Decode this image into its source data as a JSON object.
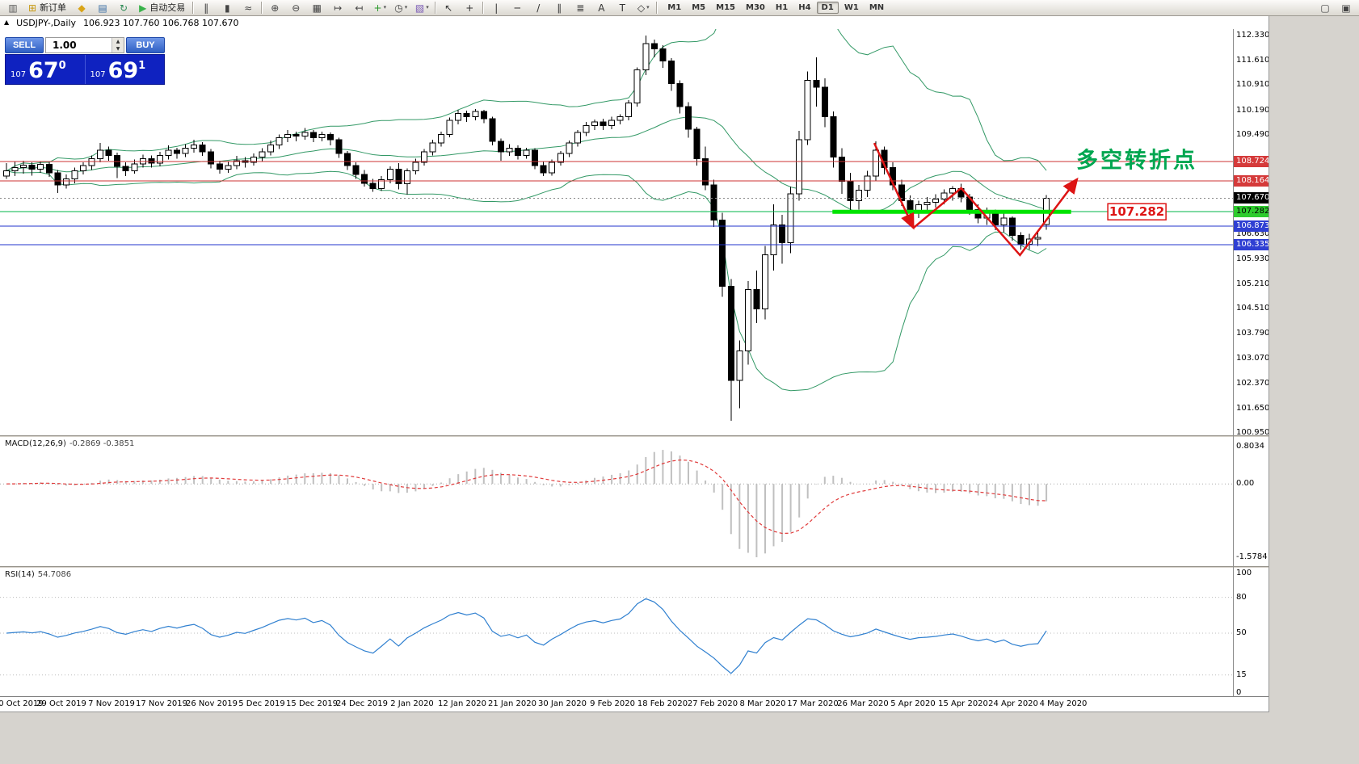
{
  "toolbar": {
    "items": [
      {
        "type": "icon",
        "name": "chart-window-icon",
        "glyph": "▥",
        "color": "#5a5a5a"
      },
      {
        "type": "labeled",
        "name": "new-order-button",
        "glyph": "⊞",
        "color": "#c79a14",
        "label": "新订单"
      },
      {
        "type": "icon",
        "name": "metaeditor-icon",
        "glyph": "◆",
        "color": "#d9a417"
      },
      {
        "type": "icon",
        "name": "market-watch-icon",
        "glyph": "▤",
        "color": "#3a6ea5"
      },
      {
        "type": "icon",
        "name": "refresh-icon",
        "glyph": "↻",
        "color": "#2e8b57"
      },
      {
        "type": "labeled",
        "name": "autotrading-button",
        "glyph": "▶",
        "color": "#38b24a",
        "label": "自动交易"
      },
      {
        "type": "sep"
      },
      {
        "type": "icon",
        "name": "bar-chart-mode-icon",
        "glyph": "‖",
        "color": "#444444"
      },
      {
        "type": "icon",
        "name": "candlestick-mode-icon",
        "glyph": "▮",
        "color": "#444444"
      },
      {
        "type": "icon",
        "name": "line-chart-mode-icon",
        "glyph": "≈",
        "color": "#444444"
      },
      {
        "type": "sep"
      },
      {
        "type": "icon",
        "name": "zoom-in-icon",
        "glyph": "⊕",
        "color": "#444444"
      },
      {
        "type": "icon",
        "name": "zoom-out-icon",
        "glyph": "⊖",
        "color": "#444444"
      },
      {
        "type": "icon",
        "name": "tile-windows-icon",
        "glyph": "▦",
        "color": "#444444"
      },
      {
        "type": "icon",
        "name": "auto-scroll-icon",
        "glyph": "↦",
        "color": "#444444"
      },
      {
        "type": "icon",
        "name": "chart-shift-icon",
        "glyph": "↤",
        "color": "#444444"
      },
      {
        "type": "dropdown",
        "name": "indicators-button",
        "glyph": "+",
        "color": "#2a9a2a"
      },
      {
        "type": "dropdown",
        "name": "periods-button",
        "glyph": "◷",
        "color": "#444444"
      },
      {
        "type": "dropdown",
        "name": "templates-button",
        "glyph": "▧",
        "color": "#7a5ab5"
      },
      {
        "type": "sep"
      },
      {
        "type": "icon",
        "name": "cursor-icon",
        "glyph": "↖",
        "color": "#333333"
      },
      {
        "type": "icon",
        "name": "crosshair-icon",
        "glyph": "+",
        "color": "#333333"
      },
      {
        "type": "sep"
      },
      {
        "type": "icon",
        "name": "vertical-line-icon",
        "glyph": "|",
        "color": "#333333"
      },
      {
        "type": "icon",
        "name": "horizontal-line-icon",
        "glyph": "─",
        "color": "#333333"
      },
      {
        "type": "icon",
        "name": "trendline-icon",
        "glyph": "/",
        "color": "#333333"
      },
      {
        "type": "icon",
        "name": "channel-icon",
        "glyph": "∥",
        "color": "#333333"
      },
      {
        "type": "icon",
        "name": "fibonacci-icon",
        "glyph": "≣",
        "color": "#333333"
      },
      {
        "type": "icon",
        "name": "text-icon",
        "glyph": "A",
        "color": "#333333"
      },
      {
        "type": "icon",
        "name": "label-icon",
        "glyph": "T",
        "color": "#333333"
      },
      {
        "type": "dropdown",
        "name": "shapes-button",
        "glyph": "◇",
        "color": "#333333"
      },
      {
        "type": "sep"
      },
      {
        "type": "timeframes"
      },
      {
        "type": "spacer"
      },
      {
        "type": "icon",
        "name": "new-window-icon",
        "glyph": "▢",
        "color": "#444444"
      },
      {
        "type": "icon",
        "name": "window-list-icon",
        "glyph": "▣",
        "color": "#444444"
      }
    ],
    "timeframes": {
      "labels": [
        "M1",
        "M5",
        "M15",
        "M30",
        "H1",
        "H4",
        "D1",
        "W1",
        "MN"
      ],
      "active": "D1"
    }
  },
  "chart_header": {
    "toggle_glyph": "▲",
    "symbol": "USDJPY-,Daily",
    "ohlc": "106.923 107.760 106.768 107.670"
  },
  "order_panel": {
    "sell_label": "SELL",
    "buy_label": "BUY",
    "volume_value": "1.00",
    "spin_up_glyph": "▲",
    "spin_down_glyph": "▼",
    "sell_price": {
      "small": "107",
      "big": "67",
      "sup": "0"
    },
    "buy_price": {
      "small": "107",
      "big": "69",
      "sup": "1"
    }
  },
  "price_axis": {
    "plain": [
      "112.330",
      "111.610",
      "110.910",
      "110.190",
      "109.490",
      "106.630",
      "105.930",
      "105.210",
      "104.510",
      "103.790",
      "103.070",
      "102.370",
      "101.650",
      "100.950"
    ],
    "badges": [
      {
        "text": "108.724",
        "value": 108.724,
        "style": "red"
      },
      {
        "text": "108.164",
        "value": 108.164,
        "style": "red"
      },
      {
        "text": "107.670",
        "value": 107.67,
        "style": "black"
      },
      {
        "text": "107.282",
        "value": 107.282,
        "style": "green"
      },
      {
        "text": "106.873",
        "value": 106.873,
        "style": "blue"
      },
      {
        "text": "106.335",
        "value": 106.335,
        "style": "blue"
      }
    ]
  },
  "time_axis": [
    "0 Oct 2019",
    "29 Oct 2019",
    "7 Nov 2019",
    "17 Nov 2019",
    "26 Nov 2019",
    "5 Dec 2019",
    "15 Dec 2019",
    "24 Dec 2019",
    "2 Jan 2020",
    "12 Jan 2020",
    "21 Jan 2020",
    "30 Jan 2020",
    "9 Feb 2020",
    "18 Feb 2020",
    "27 Feb 2020",
    "8 Mar 2020",
    "17 Mar 2020",
    "26 Mar 2020",
    "5 Apr 2020",
    "15 Apr 2020",
    "24 Apr 2020",
    "4 May 2020"
  ],
  "annotations": {
    "turning_point": "多空转折点",
    "price_label": "107.282"
  },
  "colors": {
    "level_red": "#cc3333",
    "level_green": "#00b44a",
    "level_blue": "#2233cc",
    "highlight_green": "#00e400",
    "bands_green": "#339966",
    "rsi_blue": "#3080d0",
    "macd_signal": "#e03a3a",
    "macd_hist": "#c0c0c0",
    "annotation_green": "#00a650",
    "annotation_red": "#dd1414"
  },
  "chart_data": {
    "type": "candlestick",
    "symbol": "USDJPY",
    "timeframe": "Daily",
    "title_ohlc": {
      "open": "106.923",
      "high": "107.760",
      "low": "106.768",
      "close": "107.670"
    },
    "y_axis": {
      "min": 100.95,
      "max": 112.33
    },
    "bollinger": {
      "period": 20,
      "deviation": 2
    },
    "candles": [
      [
        108.3,
        108.68,
        108.22,
        108.45
      ],
      [
        108.45,
        108.72,
        108.3,
        108.55
      ],
      [
        108.55,
        108.75,
        108.38,
        108.62
      ],
      [
        108.62,
        108.7,
        108.32,
        108.5
      ],
      [
        108.5,
        108.72,
        108.4,
        108.64
      ],
      [
        108.64,
        108.7,
        108.28,
        108.4
      ],
      [
        108.4,
        108.48,
        107.82,
        108.05
      ],
      [
        108.05,
        108.35,
        107.95,
        108.22
      ],
      [
        108.22,
        108.55,
        108.1,
        108.45
      ],
      [
        108.45,
        108.7,
        108.35,
        108.6
      ],
      [
        108.6,
        108.9,
        108.48,
        108.8
      ],
      [
        108.8,
        109.25,
        108.7,
        109.05
      ],
      [
        109.05,
        109.15,
        108.75,
        108.9
      ],
      [
        108.9,
        108.98,
        108.25,
        108.58
      ],
      [
        108.58,
        108.7,
        108.3,
        108.45
      ],
      [
        108.45,
        108.78,
        108.38,
        108.65
      ],
      [
        108.65,
        108.92,
        108.55,
        108.8
      ],
      [
        108.8,
        108.9,
        108.55,
        108.68
      ],
      [
        108.68,
        109.0,
        108.58,
        108.9
      ],
      [
        108.9,
        109.18,
        108.78,
        109.05
      ],
      [
        109.05,
        109.12,
        108.8,
        108.95
      ],
      [
        108.95,
        109.22,
        108.85,
        109.1
      ],
      [
        109.1,
        109.35,
        108.98,
        109.2
      ],
      [
        109.2,
        109.28,
        108.88,
        109.0
      ],
      [
        109.0,
        109.08,
        108.52,
        108.65
      ],
      [
        108.65,
        108.75,
        108.38,
        108.5
      ],
      [
        108.5,
        108.72,
        108.4,
        108.6
      ],
      [
        108.6,
        108.88,
        108.5,
        108.75
      ],
      [
        108.75,
        108.85,
        108.55,
        108.7
      ],
      [
        108.7,
        108.95,
        108.6,
        108.85
      ],
      [
        108.85,
        109.1,
        108.72,
        109.0
      ],
      [
        109.0,
        109.32,
        108.9,
        109.2
      ],
      [
        109.2,
        109.5,
        109.08,
        109.4
      ],
      [
        109.4,
        109.62,
        109.28,
        109.5
      ],
      [
        109.5,
        109.58,
        109.3,
        109.45
      ],
      [
        109.45,
        109.68,
        109.35,
        109.55
      ],
      [
        109.55,
        109.62,
        109.28,
        109.4
      ],
      [
        109.4,
        109.58,
        109.3,
        109.5
      ],
      [
        109.5,
        109.55,
        109.18,
        109.35
      ],
      [
        109.35,
        109.4,
        108.82,
        108.95
      ],
      [
        108.95,
        109.02,
        108.48,
        108.6
      ],
      [
        108.6,
        108.7,
        108.22,
        108.35
      ],
      [
        108.35,
        108.48,
        108.0,
        108.1
      ],
      [
        108.1,
        108.22,
        107.85,
        107.95
      ],
      [
        107.95,
        108.3,
        107.88,
        108.2
      ],
      [
        108.2,
        108.58,
        108.1,
        108.5
      ],
      [
        108.5,
        108.68,
        107.92,
        108.08
      ],
      [
        108.08,
        108.52,
        107.77,
        108.45
      ],
      [
        108.45,
        108.8,
        108.35,
        108.7
      ],
      [
        108.7,
        109.08,
        108.6,
        109.0
      ],
      [
        109.0,
        109.35,
        108.9,
        109.25
      ],
      [
        109.25,
        109.58,
        109.15,
        109.5
      ],
      [
        109.5,
        109.98,
        109.42,
        109.9
      ],
      [
        109.9,
        110.2,
        109.78,
        110.1
      ],
      [
        110.1,
        110.18,
        109.85,
        110.0
      ],
      [
        110.0,
        110.22,
        109.9,
        110.15
      ],
      [
        110.15,
        110.2,
        109.82,
        109.95
      ],
      [
        109.95,
        110.0,
        109.18,
        109.3
      ],
      [
        109.3,
        109.38,
        108.75,
        109.0
      ],
      [
        109.0,
        109.22,
        108.88,
        109.1
      ],
      [
        109.1,
        109.18,
        108.78,
        108.9
      ],
      [
        108.9,
        109.12,
        108.8,
        109.05
      ],
      [
        109.05,
        109.1,
        108.5,
        108.6
      ],
      [
        108.6,
        108.72,
        108.3,
        108.4
      ],
      [
        108.4,
        108.78,
        108.32,
        108.7
      ],
      [
        108.7,
        109.02,
        108.6,
        108.95
      ],
      [
        108.95,
        109.32,
        108.85,
        109.25
      ],
      [
        109.25,
        109.62,
        109.15,
        109.55
      ],
      [
        109.55,
        109.85,
        109.45,
        109.75
      ],
      [
        109.75,
        109.92,
        109.62,
        109.85
      ],
      [
        109.85,
        109.95,
        109.62,
        109.75
      ],
      [
        109.75,
        110.0,
        109.65,
        109.9
      ],
      [
        109.9,
        110.08,
        109.78,
        110.0
      ],
      [
        110.0,
        110.48,
        109.9,
        110.4
      ],
      [
        110.4,
        111.42,
        110.3,
        111.35
      ],
      [
        111.35,
        112.33,
        111.2,
        112.1
      ],
      [
        112.1,
        112.22,
        111.7,
        111.95
      ],
      [
        111.95,
        112.05,
        111.4,
        111.6
      ],
      [
        111.6,
        111.68,
        110.75,
        110.95
      ],
      [
        110.95,
        111.05,
        110.1,
        110.3
      ],
      [
        110.3,
        110.42,
        109.4,
        109.65
      ],
      [
        109.65,
        109.72,
        108.6,
        108.8
      ],
      [
        108.8,
        109.15,
        107.9,
        108.05
      ],
      [
        108.05,
        108.2,
        106.85,
        107.05
      ],
      [
        107.05,
        107.25,
        104.85,
        105.15
      ],
      [
        105.15,
        105.35,
        101.3,
        102.45
      ],
      [
        102.45,
        103.6,
        101.65,
        103.3
      ],
      [
        103.3,
        105.3,
        102.9,
        105.05
      ],
      [
        105.05,
        105.6,
        104.1,
        104.5
      ],
      [
        104.5,
        106.3,
        104.2,
        106.05
      ],
      [
        106.05,
        107.5,
        105.6,
        106.9
      ],
      [
        106.9,
        107.2,
        105.8,
        106.4
      ],
      [
        106.4,
        108.0,
        106.1,
        107.8
      ],
      [
        107.8,
        109.6,
        107.6,
        109.35
      ],
      [
        109.35,
        111.3,
        109.2,
        111.05
      ],
      [
        111.05,
        111.7,
        110.3,
        110.85
      ],
      [
        110.85,
        111.1,
        109.7,
        110.0
      ],
      [
        110.0,
        110.15,
        108.55,
        108.85
      ],
      [
        108.85,
        109.1,
        107.8,
        108.15
      ],
      [
        108.15,
        108.4,
        107.3,
        107.6
      ],
      [
        107.6,
        108.05,
        107.35,
        107.9
      ],
      [
        107.9,
        108.45,
        107.7,
        108.3
      ],
      [
        108.3,
        109.3,
        108.15,
        109.05
      ],
      [
        109.05,
        109.15,
        108.35,
        108.55
      ],
      [
        108.55,
        108.7,
        107.9,
        108.05
      ],
      [
        108.05,
        108.2,
        107.45,
        107.6
      ],
      [
        107.6,
        107.75,
        107.0,
        107.25
      ],
      [
        107.25,
        107.6,
        107.1,
        107.48
      ],
      [
        107.48,
        107.7,
        107.3,
        107.55
      ],
      [
        107.55,
        107.78,
        107.4,
        107.65
      ],
      [
        107.65,
        107.92,
        107.5,
        107.82
      ],
      [
        107.82,
        108.02,
        107.6,
        107.95
      ],
      [
        107.95,
        108.08,
        107.55,
        107.7
      ],
      [
        107.7,
        107.8,
        107.2,
        107.35
      ],
      [
        107.35,
        107.5,
        106.95,
        107.1
      ],
      [
        107.1,
        107.4,
        106.9,
        107.28
      ],
      [
        107.28,
        107.35,
        106.75,
        106.9
      ],
      [
        106.9,
        107.25,
        106.7,
        107.1
      ],
      [
        107.1,
        107.15,
        106.45,
        106.6
      ],
      [
        106.6,
        106.7,
        106.2,
        106.35
      ],
      [
        106.35,
        106.65,
        106.2,
        106.5
      ],
      [
        106.5,
        106.75,
        106.3,
        106.55
      ],
      [
        106.92,
        107.76,
        106.77,
        107.67
      ]
    ],
    "levels": [
      {
        "value": 108.724,
        "color": "red",
        "style": "solid"
      },
      {
        "value": 108.164,
        "color": "red",
        "style": "solid"
      },
      {
        "value": 107.282,
        "color": "green",
        "style": "solid"
      },
      {
        "value": 106.873,
        "color": "blue",
        "style": "solid"
      },
      {
        "value": 106.335,
        "color": "blue",
        "style": "solid"
      },
      {
        "value": 107.67,
        "color": "gray",
        "style": "dotted",
        "role": "current-price"
      }
    ],
    "highlight_segment": {
      "value": 107.282,
      "i1": 96.9,
      "i2": 124.9
    },
    "zigzag_points": [
      [
        101.8,
        109.25
      ],
      [
        106.4,
        106.82
      ],
      [
        112.0,
        107.96
      ],
      [
        118.9,
        106.04
      ],
      [
        125.6,
        108.22
      ]
    ],
    "text_annotation": {
      "i": 125.5,
      "p": 108.55
    },
    "price_label_box": {
      "i": 129.2,
      "p": 107.282
    },
    "indicators": [
      {
        "type": "macd",
        "label": "MACD(12,26,9)",
        "values_label": "-0.2869 -0.3851",
        "axis_ticks": [
          "0.8034",
          "0.00",
          "-1.5784"
        ],
        "axis_values": [
          0.8034,
          0,
          -1.5784
        ]
      },
      {
        "type": "rsi",
        "label": "RSI(14)",
        "values_label": "54.7086",
        "axis_ticks": [
          "100",
          "80",
          "50",
          "15",
          "0"
        ],
        "axis_values": [
          100,
          80,
          50,
          15,
          0
        ],
        "levels": [
          80,
          50,
          15
        ]
      }
    ]
  }
}
